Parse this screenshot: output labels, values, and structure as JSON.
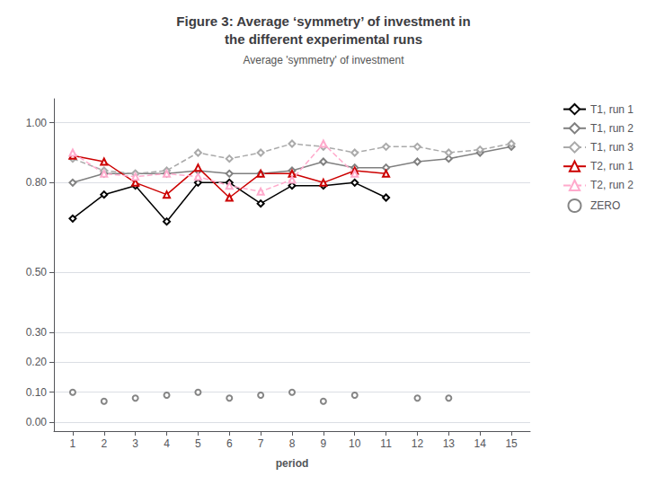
{
  "chart_data": {
    "type": "line",
    "title": "Figure 3: Average ‘symmetry’ of investment in\nthe different experimental runs",
    "subtitle": "Average 'symmetry' of investment",
    "xlabel": "period",
    "x": [
      1,
      2,
      3,
      4,
      5,
      6,
      7,
      8,
      9,
      10,
      11,
      12,
      13,
      14,
      15
    ],
    "xlim": [
      0.4,
      15.6
    ],
    "xticks": [
      1,
      2,
      3,
      4,
      5,
      6,
      7,
      8,
      9,
      10,
      11,
      12,
      13,
      14,
      15
    ],
    "ylim": [
      -0.03,
      1.08
    ],
    "yticks": [
      {
        "value": 0.0,
        "label": "0.00"
      },
      {
        "value": 0.1,
        "label": "0.10"
      },
      {
        "value": 0.2,
        "label": "0.20"
      },
      {
        "value": 0.3,
        "label": "0.30"
      },
      {
        "value": 0.5,
        "label": "0.50"
      },
      {
        "value": 0.8,
        "label": "0.80"
      },
      {
        "value": 1.0,
        "label": "1.00"
      }
    ],
    "grid": true,
    "legend": "right",
    "series": [
      {
        "name": "T1, run 1",
        "type": "line",
        "color": "#000000",
        "marker": "diamond",
        "line_style": "solid",
        "values": [
          0.68,
          0.76,
          0.79,
          0.67,
          0.8,
          0.8,
          0.73,
          0.79,
          0.79,
          0.8,
          0.75,
          null,
          null,
          null,
          null
        ]
      },
      {
        "name": "T1, run 2",
        "type": "line",
        "color": "#808080",
        "marker": "diamond",
        "line_style": "solid",
        "values": [
          0.8,
          0.83,
          0.83,
          0.83,
          0.84,
          0.83,
          0.83,
          0.84,
          0.87,
          0.85,
          0.85,
          0.87,
          0.88,
          0.9,
          0.92
        ]
      },
      {
        "name": "T1, run 3",
        "type": "line",
        "color": "#aaaaaa",
        "marker": "diamond",
        "line_style": "dashed",
        "values": [
          0.88,
          0.84,
          0.83,
          0.84,
          0.9,
          0.88,
          0.9,
          0.93,
          0.92,
          0.9,
          0.92,
          0.92,
          0.9,
          0.91,
          0.93
        ]
      },
      {
        "name": "T2, run 1",
        "type": "line",
        "color": "#cc0000",
        "marker": "triangle",
        "line_style": "solid",
        "values": [
          0.89,
          0.87,
          0.8,
          0.76,
          0.85,
          0.75,
          0.83,
          0.83,
          0.8,
          0.84,
          0.83,
          null,
          null,
          null,
          null
        ]
      },
      {
        "name": "T2, run 2",
        "type": "line",
        "color": "#ffaacc",
        "marker": "triangle",
        "line_style": "dashed",
        "values": [
          0.9,
          0.83,
          0.82,
          0.83,
          0.82,
          0.79,
          0.77,
          0.81,
          0.93,
          0.83,
          null,
          null,
          null,
          null,
          null
        ]
      },
      {
        "name": "ZERO",
        "type": "scatter",
        "color": "#666666",
        "marker": "circle",
        "values": [
          0.1,
          0.07,
          0.08,
          0.09,
          0.1,
          0.08,
          0.09,
          0.1,
          0.07,
          0.09,
          null,
          0.08,
          0.08,
          null,
          null
        ]
      }
    ]
  }
}
